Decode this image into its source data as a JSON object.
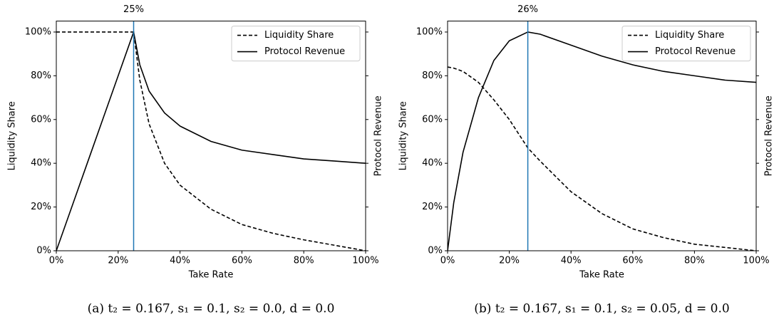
{
  "chart_data": [
    {
      "type": "line",
      "xlabel": "Take Rate",
      "ylabel": "Liquidity Share",
      "y2label": "Protocol Revenue",
      "caption": "(a) t₂ = 0.167, s₁ = 0.1, s₂ = 0.0, d = 0.0",
      "x": [
        0,
        5,
        10,
        15,
        20,
        25,
        27,
        30,
        35,
        40,
        50,
        60,
        70,
        80,
        90,
        100
      ],
      "series": [
        {
          "name": "Liquidity Share",
          "color": "#000000",
          "dash": true,
          "values": [
            100,
            100,
            100,
            100,
            100,
            100,
            78,
            58,
            40,
            30,
            19,
            12,
            8,
            5,
            2.5,
            0
          ]
        },
        {
          "name": "Protocol Revenue",
          "color": "#000000",
          "dash": false,
          "values": [
            0,
            20,
            40,
            60,
            80,
            100,
            85,
            73,
            63,
            57,
            50,
            46,
            44,
            42,
            41,
            40
          ]
        }
      ],
      "annotation": {
        "x": 25,
        "label": "25%",
        "color": "#1f77b4"
      },
      "xlim": [
        0,
        100
      ],
      "ylim": [
        0,
        105
      ],
      "xticks": [
        {
          "value": 0,
          "label": "0%"
        },
        {
          "value": 20,
          "label": "20%"
        },
        {
          "value": 40,
          "label": "40%"
        },
        {
          "value": 60,
          "label": "60%"
        },
        {
          "value": 80,
          "label": "80%"
        },
        {
          "value": 100,
          "label": "100%"
        }
      ],
      "yticks": [
        {
          "value": 0,
          "label": "0%"
        },
        {
          "value": 20,
          "label": "20%"
        },
        {
          "value": 40,
          "label": "40%"
        },
        {
          "value": 60,
          "label": "60%"
        },
        {
          "value": 80,
          "label": "80%"
        },
        {
          "value": 100,
          "label": "100%"
        }
      ],
      "legend": "upper right"
    },
    {
      "type": "line",
      "xlabel": "Take Rate",
      "ylabel": "Liquidity Share",
      "y2label": "Protocol Revenue",
      "caption": "(b) t₂ = 0.167, s₁ = 0.1, s₂ = 0.05, d = 0.0",
      "x": [
        0,
        2,
        5,
        10,
        15,
        20,
        26,
        30,
        40,
        50,
        60,
        70,
        80,
        90,
        100
      ],
      "series": [
        {
          "name": "Liquidity Share",
          "color": "#000000",
          "dash": true,
          "values": [
            84,
            83.5,
            82,
            77,
            69,
            60,
            47,
            41,
            27,
            17,
            10,
            6,
            3,
            1.5,
            0
          ]
        },
        {
          "name": "Protocol Revenue",
          "color": "#000000",
          "dash": false,
          "values": [
            0,
            22,
            45,
            70,
            87,
            96,
            100,
            99,
            94,
            89,
            85,
            82,
            80,
            78,
            77
          ]
        }
      ],
      "annotation": {
        "x": 26,
        "label": "26%",
        "color": "#1f77b4"
      },
      "xlim": [
        0,
        100
      ],
      "ylim": [
        0,
        105
      ],
      "xticks": [
        {
          "value": 0,
          "label": "0%"
        },
        {
          "value": 20,
          "label": "20%"
        },
        {
          "value": 40,
          "label": "40%"
        },
        {
          "value": 60,
          "label": "60%"
        },
        {
          "value": 80,
          "label": "80%"
        },
        {
          "value": 100,
          "label": "100%"
        }
      ],
      "yticks": [
        {
          "value": 0,
          "label": "0%"
        },
        {
          "value": 20,
          "label": "20%"
        },
        {
          "value": 40,
          "label": "40%"
        },
        {
          "value": 60,
          "label": "60%"
        },
        {
          "value": 80,
          "label": "80%"
        },
        {
          "value": 100,
          "label": "100%"
        }
      ],
      "legend": "upper right"
    }
  ]
}
